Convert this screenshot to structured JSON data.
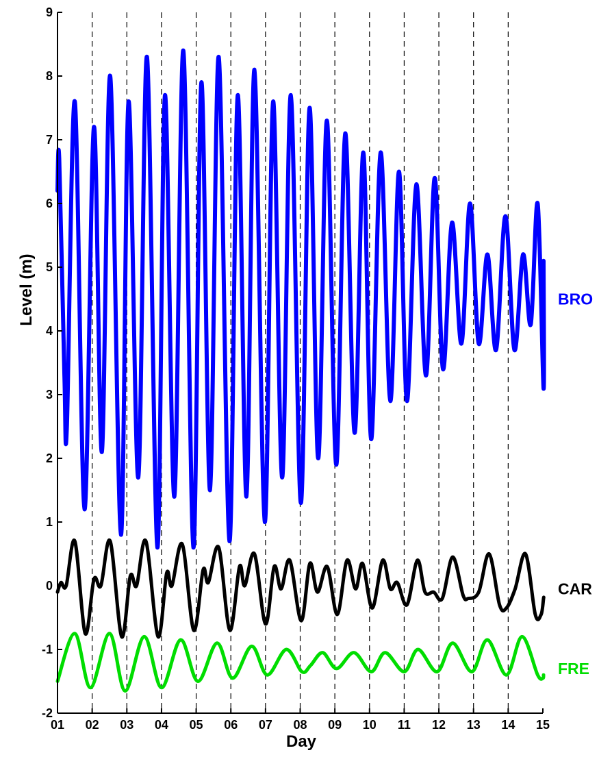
{
  "chart_data": {
    "type": "line",
    "title": "",
    "xlabel": "Day",
    "ylabel": "Level (m)",
    "xlim": [
      1,
      15
    ],
    "ylim": [
      -2,
      9
    ],
    "x_ticks": [
      "01",
      "02",
      "03",
      "04",
      "05",
      "06",
      "07",
      "08",
      "09",
      "10",
      "11",
      "12",
      "13",
      "14",
      "15"
    ],
    "y_ticks": [
      "-2",
      "-1",
      "0",
      "1",
      "2",
      "3",
      "4",
      "5",
      "6",
      "7",
      "8",
      "9"
    ],
    "grid": "vertical dashed lines at each day",
    "legend": "series labels at right end of each line",
    "series": [
      {
        "name": "BRO",
        "color": "#0000ff",
        "points": [
          [
            1.0,
            6.2
          ],
          [
            1.05,
            6.7
          ],
          [
            1.2,
            3.3
          ],
          [
            1.27,
            2.5
          ],
          [
            1.5,
            7.6
          ],
          [
            1.78,
            1.2
          ],
          [
            2.05,
            7.2
          ],
          [
            2.28,
            2.1
          ],
          [
            2.52,
            8.0
          ],
          [
            2.83,
            0.8
          ],
          [
            3.05,
            7.6
          ],
          [
            3.33,
            1.7
          ],
          [
            3.58,
            8.3
          ],
          [
            3.88,
            0.6
          ],
          [
            4.1,
            7.7
          ],
          [
            4.37,
            1.4
          ],
          [
            4.63,
            8.4
          ],
          [
            4.92,
            0.6
          ],
          [
            5.15,
            7.9
          ],
          [
            5.4,
            1.5
          ],
          [
            5.65,
            8.3
          ],
          [
            5.96,
            0.7
          ],
          [
            6.2,
            7.7
          ],
          [
            6.45,
            1.4
          ],
          [
            6.68,
            8.1
          ],
          [
            6.98,
            1.0
          ],
          [
            7.22,
            7.6
          ],
          [
            7.48,
            1.7
          ],
          [
            7.73,
            7.7
          ],
          [
            8.02,
            1.3
          ],
          [
            8.27,
            7.5
          ],
          [
            8.52,
            2.0
          ],
          [
            8.77,
            7.3
          ],
          [
            9.04,
            1.9
          ],
          [
            9.3,
            7.1
          ],
          [
            9.57,
            2.4
          ],
          [
            9.82,
            6.8
          ],
          [
            10.05,
            2.3
          ],
          [
            10.32,
            6.8
          ],
          [
            10.6,
            2.9
          ],
          [
            10.85,
            6.5
          ],
          [
            11.08,
            2.9
          ],
          [
            11.35,
            6.3
          ],
          [
            11.63,
            3.3
          ],
          [
            11.88,
            6.4
          ],
          [
            12.12,
            3.4
          ],
          [
            12.38,
            5.7
          ],
          [
            12.65,
            3.8
          ],
          [
            12.9,
            6.0
          ],
          [
            13.15,
            3.8
          ],
          [
            13.4,
            5.2
          ],
          [
            13.65,
            3.7
          ],
          [
            13.92,
            5.8
          ],
          [
            14.18,
            3.7
          ],
          [
            14.43,
            5.2
          ],
          [
            14.65,
            4.1
          ],
          [
            14.85,
            6.0
          ],
          [
            15.05,
            3.1
          ],
          [
            15.25,
            5.1
          ]
        ]
      },
      {
        "name": "CAR",
        "color": "#000000",
        "points": [
          [
            1.0,
            -0.1
          ],
          [
            1.1,
            0.05
          ],
          [
            1.25,
            0.0
          ],
          [
            1.5,
            0.7
          ],
          [
            1.8,
            -0.75
          ],
          [
            2.05,
            0.1
          ],
          [
            2.25,
            0.0
          ],
          [
            2.52,
            0.7
          ],
          [
            2.85,
            -0.8
          ],
          [
            3.1,
            0.15
          ],
          [
            3.28,
            0.0
          ],
          [
            3.55,
            0.7
          ],
          [
            3.9,
            -0.8
          ],
          [
            4.15,
            0.2
          ],
          [
            4.3,
            0.0
          ],
          [
            4.6,
            0.65
          ],
          [
            4.93,
            -0.7
          ],
          [
            5.2,
            0.25
          ],
          [
            5.35,
            0.05
          ],
          [
            5.65,
            0.6
          ],
          [
            5.97,
            -0.7
          ],
          [
            6.25,
            0.3
          ],
          [
            6.4,
            0.0
          ],
          [
            6.68,
            0.5
          ],
          [
            7.0,
            -0.6
          ],
          [
            7.25,
            0.3
          ],
          [
            7.45,
            -0.05
          ],
          [
            7.7,
            0.4
          ],
          [
            8.03,
            -0.55
          ],
          [
            8.28,
            0.35
          ],
          [
            8.5,
            -0.1
          ],
          [
            8.78,
            0.3
          ],
          [
            9.07,
            -0.45
          ],
          [
            9.35,
            0.4
          ],
          [
            9.6,
            -0.05
          ],
          [
            9.8,
            0.35
          ],
          [
            10.08,
            -0.35
          ],
          [
            10.38,
            0.4
          ],
          [
            10.6,
            -0.05
          ],
          [
            10.8,
            0.05
          ],
          [
            11.08,
            -0.3
          ],
          [
            11.38,
            0.4
          ],
          [
            11.6,
            -0.1
          ],
          [
            11.85,
            -0.1
          ],
          [
            12.1,
            -0.2
          ],
          [
            12.4,
            0.45
          ],
          [
            12.7,
            -0.15
          ],
          [
            12.85,
            -0.2
          ],
          [
            13.15,
            -0.1
          ],
          [
            13.45,
            0.5
          ],
          [
            13.75,
            -0.3
          ],
          [
            13.95,
            -0.35
          ],
          [
            14.2,
            -0.05
          ],
          [
            14.5,
            0.5
          ],
          [
            14.78,
            -0.45
          ],
          [
            14.95,
            -0.45
          ],
          [
            15.05,
            -0.2
          ],
          [
            15.2,
            -0.2
          ]
        ]
      },
      {
        "name": "FRE",
        "color": "#00dd00",
        "points": [
          [
            1.0,
            -1.5
          ],
          [
            1.5,
            -0.75
          ],
          [
            1.95,
            -1.6
          ],
          [
            2.5,
            -0.75
          ],
          [
            2.95,
            -1.65
          ],
          [
            3.5,
            -0.8
          ],
          [
            4.0,
            -1.6
          ],
          [
            4.55,
            -0.85
          ],
          [
            5.05,
            -1.5
          ],
          [
            5.6,
            -0.9
          ],
          [
            6.05,
            -1.45
          ],
          [
            6.6,
            -0.95
          ],
          [
            7.05,
            -1.4
          ],
          [
            7.6,
            -1.0
          ],
          [
            8.05,
            -1.35
          ],
          [
            8.3,
            -1.25
          ],
          [
            8.65,
            -1.05
          ],
          [
            9.05,
            -1.3
          ],
          [
            9.55,
            -1.05
          ],
          [
            10.05,
            -1.35
          ],
          [
            10.45,
            -1.05
          ],
          [
            11.0,
            -1.35
          ],
          [
            11.4,
            -1.0
          ],
          [
            11.95,
            -1.35
          ],
          [
            12.4,
            -0.9
          ],
          [
            12.95,
            -1.35
          ],
          [
            13.4,
            -0.85
          ],
          [
            13.95,
            -1.4
          ],
          [
            14.4,
            -0.8
          ],
          [
            14.85,
            -1.4
          ],
          [
            15.0,
            -1.45
          ],
          [
            15.2,
            -1.4
          ]
        ]
      }
    ]
  }
}
